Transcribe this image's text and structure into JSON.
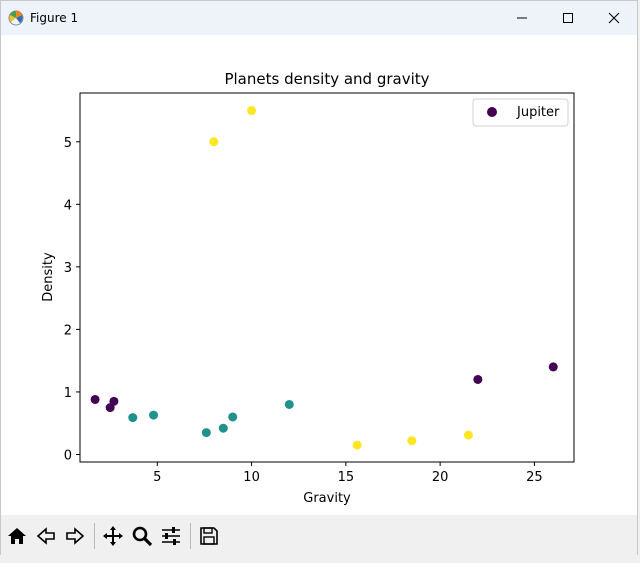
{
  "window": {
    "title": "Figure 1"
  },
  "toolbar": {
    "tools": [
      "home-icon",
      "back-icon",
      "forward-icon",
      "pan-icon",
      "zoom-icon",
      "configure-subplots-icon",
      "save-icon"
    ]
  },
  "chart_data": {
    "type": "scatter",
    "title": "Planets density and gravity",
    "xlabel": "Gravity",
    "ylabel": "Density",
    "xlim": [
      0.9,
      27.1
    ],
    "ylim": [
      -0.12,
      5.78
    ],
    "xticks": [
      5,
      10,
      15,
      20,
      25
    ],
    "yticks": [
      0,
      1,
      2,
      3,
      4,
      5
    ],
    "grid": false,
    "legend": {
      "entries": [
        "Jupiter"
      ],
      "placement": "top-right"
    },
    "points": [
      {
        "x": 1.7,
        "y": 0.88,
        "color": "#440154"
      },
      {
        "x": 2.5,
        "y": 0.75,
        "color": "#440154"
      },
      {
        "x": 2.7,
        "y": 0.85,
        "color": "#440154"
      },
      {
        "x": 22.0,
        "y": 1.2,
        "color": "#440154"
      },
      {
        "x": 26.0,
        "y": 1.4,
        "color": "#440154"
      },
      {
        "x": 3.7,
        "y": 0.59,
        "color": "#21918c"
      },
      {
        "x": 4.8,
        "y": 0.63,
        "color": "#21918c"
      },
      {
        "x": 7.6,
        "y": 0.35,
        "color": "#21918c"
      },
      {
        "x": 8.5,
        "y": 0.42,
        "color": "#21918c"
      },
      {
        "x": 9.0,
        "y": 0.6,
        "color": "#21918c"
      },
      {
        "x": 12.0,
        "y": 0.8,
        "color": "#21918c"
      },
      {
        "x": 8.0,
        "y": 5.0,
        "color": "#fde725"
      },
      {
        "x": 10.0,
        "y": 5.5,
        "color": "#fde725"
      },
      {
        "x": 15.6,
        "y": 0.15,
        "color": "#fde725"
      },
      {
        "x": 18.5,
        "y": 0.22,
        "color": "#fde725"
      },
      {
        "x": 21.5,
        "y": 0.31,
        "color": "#fde725"
      }
    ]
  }
}
